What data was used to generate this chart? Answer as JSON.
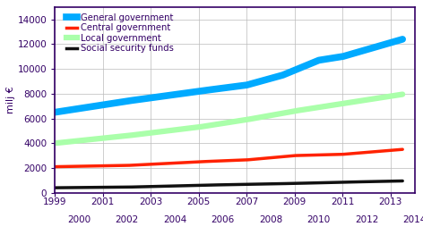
{
  "title": "",
  "ylabel": "milj €",
  "xlim": [
    1999,
    2014
  ],
  "ylim": [
    0,
    15000
  ],
  "yticks": [
    0,
    2000,
    4000,
    6000,
    8000,
    10000,
    12000,
    14000
  ],
  "xticks_odd": [
    1999,
    2001,
    2003,
    2005,
    2007,
    2009,
    2011,
    2013
  ],
  "xticks_even": [
    2000,
    2002,
    2004,
    2006,
    2008,
    2010,
    2012,
    2014
  ],
  "series": {
    "General government": {
      "color": "#00aaff",
      "linewidth": 5.5,
      "x_vals": [
        1999,
        2002,
        2005,
        2007,
        2008.5,
        2010,
        2011,
        2013.5
      ],
      "y_vals": [
        6500,
        7400,
        8200,
        8700,
        9500,
        10700,
        11000,
        12400
      ]
    },
    "Central government": {
      "color": "#ff2200",
      "linewidth": 2.5,
      "x_vals": [
        1999,
        2002,
        2005,
        2007,
        2009,
        2011,
        2013.5
      ],
      "y_vals": [
        2100,
        2200,
        2500,
        2650,
        3000,
        3100,
        3500
      ]
    },
    "Local government": {
      "color": "#aaffaa",
      "linewidth": 4.5,
      "x_vals": [
        1999,
        2002,
        2005,
        2007,
        2009,
        2011,
        2013.5
      ],
      "y_vals": [
        4000,
        4600,
        5300,
        5900,
        6600,
        7200,
        7950
      ]
    },
    "Social security funds": {
      "color": "#111111",
      "linewidth": 2.5,
      "x_vals": [
        1999,
        2002,
        2005,
        2007,
        2009,
        2011,
        2013.5
      ],
      "y_vals": [
        400,
        450,
        600,
        680,
        750,
        850,
        950
      ]
    }
  },
  "background_color": "#ffffff",
  "grid_color": "#bbbbbb",
  "axis_color": "#330066",
  "label_color": "#330066",
  "legend_color": "#330066",
  "tick_color": "#330066",
  "tick_fontsize": 7.5,
  "ylabel_fontsize": 8,
  "legend_fontsize": 7.2,
  "figsize": [
    4.72,
    2.63
  ],
  "dpi": 100
}
